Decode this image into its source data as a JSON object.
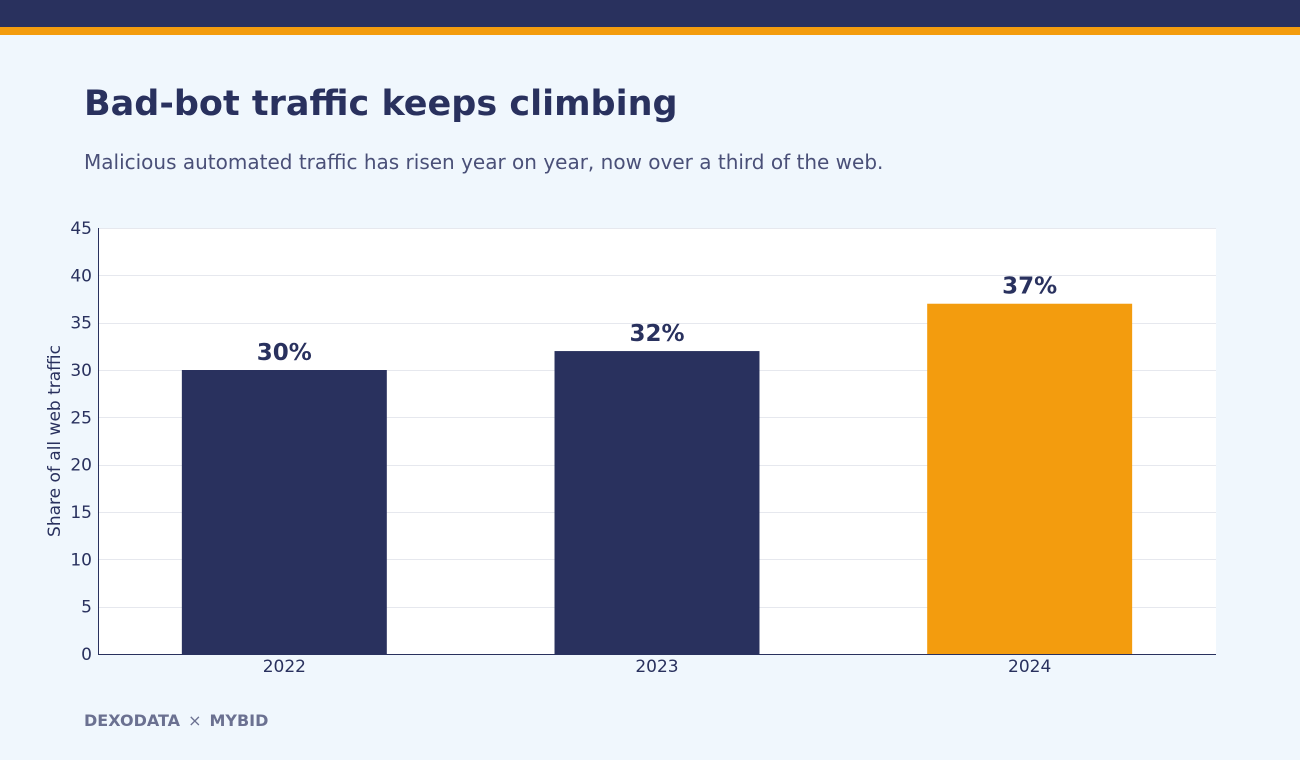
{
  "header": {
    "title": "Bad-bot traffic keeps climbing",
    "subtitle": "Malicious automated traffic has risen year on year, now over a third of the web."
  },
  "chart_data": {
    "type": "bar",
    "title": "Bad-bot traffic keeps climbing",
    "subtitle": "Malicious automated traffic has risen year on year, now over a third of the web.",
    "categories": [
      "2022",
      "2023",
      "2024"
    ],
    "values": [
      30,
      32,
      37
    ],
    "data_labels": [
      "30%",
      "32%",
      "37%"
    ],
    "xlabel": "",
    "ylabel": "Share of all web traffic",
    "ylim": [
      0,
      45
    ],
    "yticks": [
      0,
      5,
      10,
      15,
      20,
      25,
      30,
      35,
      40,
      45
    ],
    "grid": true,
    "legend": "none",
    "colors": {
      "bar": "#29315e",
      "highlight_bar": "#f39c0e",
      "highlight_category": "2024"
    }
  },
  "footer": {
    "brand_left": "DEXODATA",
    "separator": "×",
    "brand_right": "MYBID"
  },
  "colors": {
    "navy": "#29315e",
    "orange": "#f39c0e",
    "background": "#f0f7fd"
  }
}
